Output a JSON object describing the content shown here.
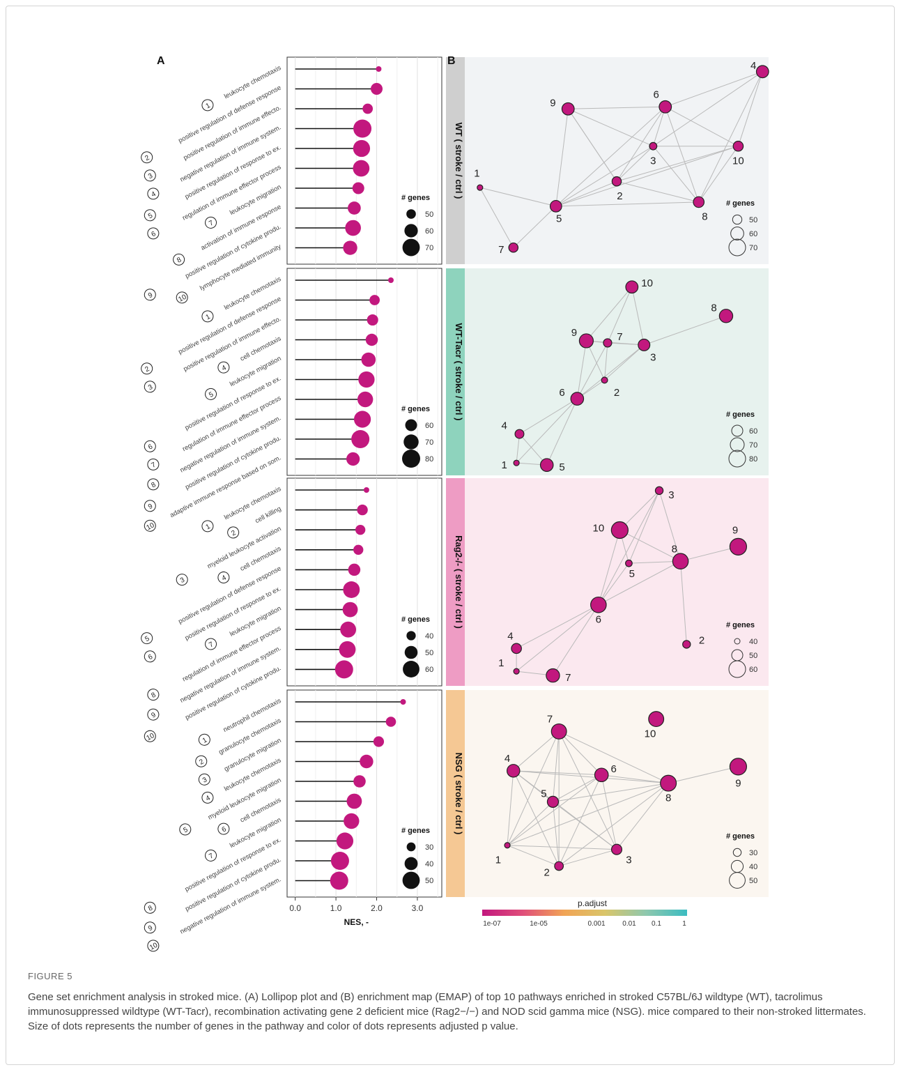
{
  "panel_labels": {
    "a": "A",
    "b": "B"
  },
  "nes_axis": {
    "label": "NES, -",
    "ticks": [
      "0.0",
      "1.0",
      "2.0",
      "3.0"
    ],
    "range": [
      -0.2,
      3.6
    ]
  },
  "legend_title": "# genes",
  "colorbar": {
    "title": "p.adjust",
    "ticks": [
      "1e-07",
      "1e-05",
      "0.001",
      "0.01",
      "0.1",
      "1"
    ],
    "colors": [
      "#c2187e",
      "#e04f7a",
      "#f1a455",
      "#d9c56a",
      "#8ec8ae",
      "#3bbcc1"
    ]
  },
  "node_color": "#c2187e",
  "chart_data": [
    {
      "type": "scatter",
      "group": "WT ( stroke / ctrl )",
      "strip_color": "#cfcfcf",
      "bg_color": "#f1f3f5",
      "pathways": [
        "leukocyte chemotaxis",
        "positive regulation of defense response",
        "positive regulation of immune effecto.",
        "negative regulation of immune system.",
        "positive regulation of response to ex.",
        "regulation of immune effector process",
        "leukocyte migration",
        "activation of immune response",
        "positive regulation of cytokine produ.",
        "lymphocyte mediated immunity"
      ],
      "nes": [
        2.05,
        2.0,
        1.78,
        1.65,
        1.63,
        1.62,
        1.55,
        1.45,
        1.42,
        1.35
      ],
      "genes": [
        40,
        56,
        52,
        72,
        69,
        68,
        56,
        59,
        66,
        62
      ],
      "legend": [
        50,
        60,
        70
      ]
    },
    {
      "type": "scatter",
      "group": "WT-Tacr ( stroke / ctrl )",
      "strip_color": "#8ed3bd",
      "bg_color": "#e7f2ee",
      "pathways": [
        "leukocyte chemotaxis",
        "positive regulation of defense response",
        "positive regulation of immune effecto.",
        "cell chemotaxis",
        "leukocyte migration",
        "positive regulation of response to ex.",
        "regulation of immune effector process",
        "negative regulation of immune system.",
        "positive regulation of cytokine produ.",
        "adaptive immune response based on som."
      ],
      "nes": [
        2.35,
        1.95,
        1.9,
        1.88,
        1.8,
        1.75,
        1.72,
        1.65,
        1.6,
        1.42
      ],
      "genes": [
        40,
        55,
        58,
        61,
        68,
        74,
        72,
        76,
        80,
        65
      ],
      "legend": [
        60,
        70,
        80
      ]
    },
    {
      "type": "scatter",
      "group": "Rag2-/- ( stroke / ctrl )",
      "strip_color": "#ee9cc4",
      "bg_color": "#fbe8ef",
      "pathways": [
        "leukocyte chemotaxis",
        "cell killing",
        "myeloid leukocyte activation",
        "cell chemotaxis",
        "positive regulation of defense response",
        "positive regulation of response to ex.",
        "leukocyte migration",
        "regulation of immune effector process",
        "negative regulation of immune system.",
        "positive regulation of cytokine produ."
      ],
      "nes": [
        1.75,
        1.65,
        1.6,
        1.55,
        1.45,
        1.38,
        1.35,
        1.3,
        1.28,
        1.2
      ],
      "genes": [
        30,
        44,
        42,
        42,
        48,
        60,
        56,
        58,
        60,
        64
      ],
      "legend": [
        40,
        50,
        60
      ]
    },
    {
      "type": "scatter",
      "group": "NSG ( stroke / ctrl )",
      "strip_color": "#f5c894",
      "bg_color": "#fbf6f0",
      "pathways": [
        "neutrophil chemotaxis",
        "granulocyte chemotaxis",
        "granulocyte migration",
        "leukocyte chemotaxis",
        "myeloid leukocyte migration",
        "cell chemotaxis",
        "leukocyte migration",
        "positive regulation of response to ex.",
        "positive regulation of cytokine produ.",
        "negative regulation of immune system."
      ],
      "nes": [
        2.65,
        2.35,
        2.05,
        1.75,
        1.58,
        1.45,
        1.38,
        1.22,
        1.1,
        1.08
      ],
      "genes": [
        22,
        33,
        34,
        41,
        38,
        45,
        46,
        49,
        52,
        52
      ],
      "legend": [
        30,
        40,
        50
      ]
    }
  ],
  "emap": [
    {
      "nodes": [
        [
          1,
          0.05,
          0.63,
          40
        ],
        [
          2,
          0.5,
          0.6,
          50
        ],
        [
          3,
          0.62,
          0.43,
          45
        ],
        [
          4,
          0.98,
          0.07,
          58
        ],
        [
          5,
          0.3,
          0.72,
          56
        ],
        [
          6,
          0.66,
          0.24,
          58
        ],
        [
          7,
          0.16,
          0.92,
          50
        ],
        [
          8,
          0.77,
          0.7,
          54
        ],
        [
          9,
          0.34,
          0.25,
          58
        ],
        [
          10,
          0.9,
          0.43,
          52
        ]
      ],
      "edges": [
        [
          1,
          5
        ],
        [
          1,
          7
        ],
        [
          5,
          7
        ],
        [
          5,
          2
        ],
        [
          5,
          3
        ],
        [
          5,
          6
        ],
        [
          5,
          9
        ],
        [
          5,
          8
        ],
        [
          5,
          10
        ],
        [
          2,
          3
        ],
        [
          2,
          6
        ],
        [
          2,
          9
        ],
        [
          2,
          8
        ],
        [
          2,
          10
        ],
        [
          3,
          6
        ],
        [
          3,
          10
        ],
        [
          3,
          8
        ],
        [
          3,
          4
        ],
        [
          6,
          9
        ],
        [
          6,
          4
        ],
        [
          6,
          10
        ],
        [
          6,
          8
        ],
        [
          4,
          10
        ],
        [
          4,
          8
        ],
        [
          9,
          2
        ],
        [
          10,
          8
        ],
        [
          9,
          3
        ]
      ],
      "label_pos": [
        [
          1,
          0.04,
          0.56
        ],
        [
          2,
          0.51,
          0.67
        ],
        [
          3,
          0.62,
          0.5
        ],
        [
          4,
          0.95,
          0.04
        ],
        [
          5,
          0.31,
          0.78
        ],
        [
          6,
          0.63,
          0.18
        ],
        [
          7,
          0.12,
          0.93
        ],
        [
          8,
          0.79,
          0.77
        ],
        [
          9,
          0.29,
          0.22
        ],
        [
          10,
          0.9,
          0.5
        ]
      ]
    },
    {
      "nodes": [
        [
          1,
          0.17,
          0.94,
          40
        ],
        [
          2,
          0.46,
          0.54,
          42
        ],
        [
          3,
          0.59,
          0.37,
          62
        ],
        [
          4,
          0.18,
          0.8,
          52
        ],
        [
          5,
          0.27,
          0.95,
          66
        ],
        [
          6,
          0.37,
          0.63,
          66
        ],
        [
          7,
          0.47,
          0.36,
          50
        ],
        [
          8,
          0.86,
          0.23,
          68
        ],
        [
          9,
          0.4,
          0.35,
          70
        ],
        [
          10,
          0.55,
          0.09,
          64
        ]
      ],
      "edges": [
        [
          1,
          4
        ],
        [
          1,
          5
        ],
        [
          4,
          5
        ],
        [
          4,
          6
        ],
        [
          5,
          6
        ],
        [
          1,
          6
        ],
        [
          6,
          9
        ],
        [
          6,
          7
        ],
        [
          6,
          3
        ],
        [
          6,
          2
        ],
        [
          2,
          9
        ],
        [
          2,
          3
        ],
        [
          9,
          7
        ],
        [
          7,
          3
        ],
        [
          9,
          3
        ],
        [
          9,
          10
        ],
        [
          10,
          3
        ],
        [
          10,
          7
        ],
        [
          3,
          8
        ],
        [
          2,
          7
        ]
      ],
      "label_pos": [
        [
          1,
          0.13,
          0.95
        ],
        [
          2,
          0.5,
          0.6
        ],
        [
          3,
          0.62,
          0.43
        ],
        [
          4,
          0.13,
          0.76
        ],
        [
          5,
          0.32,
          0.96
        ],
        [
          6,
          0.32,
          0.6
        ],
        [
          7,
          0.51,
          0.33
        ],
        [
          8,
          0.82,
          0.19
        ],
        [
          9,
          0.36,
          0.31
        ],
        [
          10,
          0.6,
          0.07
        ]
      ]
    },
    {
      "nodes": [
        [
          1,
          0.17,
          0.93,
          40
        ],
        [
          2,
          0.73,
          0.8,
          44
        ],
        [
          3,
          0.64,
          0.06,
          44
        ],
        [
          4,
          0.17,
          0.82,
          48
        ],
        [
          5,
          0.54,
          0.41,
          42
        ],
        [
          6,
          0.44,
          0.61,
          58
        ],
        [
          7,
          0.29,
          0.95,
          54
        ],
        [
          8,
          0.71,
          0.4,
          58
        ],
        [
          9,
          0.9,
          0.33,
          60
        ],
        [
          10,
          0.51,
          0.25,
          60
        ]
      ],
      "edges": [
        [
          1,
          4
        ],
        [
          1,
          7
        ],
        [
          4,
          6
        ],
        [
          7,
          6
        ],
        [
          1,
          6
        ],
        [
          6,
          5
        ],
        [
          6,
          10
        ],
        [
          6,
          8
        ],
        [
          5,
          10
        ],
        [
          5,
          8
        ],
        [
          5,
          3
        ],
        [
          10,
          3
        ],
        [
          10,
          8
        ],
        [
          8,
          3
        ],
        [
          8,
          9
        ],
        [
          8,
          2
        ],
        [
          6,
          3
        ]
      ],
      "label_pos": [
        [
          1,
          0.12,
          0.89
        ],
        [
          2,
          0.78,
          0.78
        ],
        [
          3,
          0.68,
          0.08
        ],
        [
          4,
          0.15,
          0.76
        ],
        [
          5,
          0.55,
          0.46
        ],
        [
          6,
          0.44,
          0.68
        ],
        [
          7,
          0.34,
          0.96
        ],
        [
          8,
          0.69,
          0.34
        ],
        [
          9,
          0.89,
          0.25
        ],
        [
          10,
          0.44,
          0.24
        ]
      ]
    },
    {
      "nodes": [
        [
          1,
          0.14,
          0.75,
          24
        ],
        [
          2,
          0.31,
          0.85,
          32
        ],
        [
          3,
          0.5,
          0.77,
          36
        ],
        [
          4,
          0.16,
          0.39,
          42
        ],
        [
          5,
          0.29,
          0.54,
          38
        ],
        [
          6,
          0.45,
          0.41,
          44
        ],
        [
          7,
          0.31,
          0.2,
          48
        ],
        [
          8,
          0.67,
          0.45,
          50
        ],
        [
          9,
          0.9,
          0.37,
          52
        ],
        [
          10,
          0.63,
          0.14,
          48
        ]
      ],
      "edges": [
        [
          1,
          4
        ],
        [
          1,
          7
        ],
        [
          1,
          5
        ],
        [
          1,
          6
        ],
        [
          1,
          2
        ],
        [
          1,
          3
        ],
        [
          1,
          8
        ],
        [
          4,
          7
        ],
        [
          4,
          6
        ],
        [
          4,
          5
        ],
        [
          4,
          2
        ],
        [
          4,
          3
        ],
        [
          4,
          8
        ],
        [
          7,
          5
        ],
        [
          7,
          6
        ],
        [
          7,
          2
        ],
        [
          7,
          3
        ],
        [
          7,
          8
        ],
        [
          5,
          6
        ],
        [
          5,
          2
        ],
        [
          5,
          3
        ],
        [
          5,
          8
        ],
        [
          6,
          2
        ],
        [
          6,
          3
        ],
        [
          6,
          8
        ],
        [
          2,
          3
        ],
        [
          2,
          8
        ],
        [
          3,
          8
        ],
        [
          8,
          9
        ]
      ],
      "label_pos": [
        [
          1,
          0.11,
          0.82
        ],
        [
          2,
          0.27,
          0.88
        ],
        [
          3,
          0.54,
          0.82
        ],
        [
          4,
          0.14,
          0.33
        ],
        [
          5,
          0.26,
          0.5
        ],
        [
          6,
          0.49,
          0.38
        ],
        [
          7,
          0.28,
          0.14
        ],
        [
          8,
          0.67,
          0.52
        ],
        [
          9,
          0.9,
          0.45
        ],
        [
          10,
          0.61,
          0.21
        ]
      ]
    }
  ],
  "caption": {
    "label": "FIGURE 5",
    "text": "Gene set enrichment analysis in stroked mice. (A) Lollipop plot and (B) enrichment map (EMAP) of top 10 pathways enriched in stroked C57BL/6J wildtype (WT), tacrolimus immunosuppressed wildtype (WT-Tacr), recombination activating gene 2 deficient mice (Rag2−/−) and NOD scid gamma mice (NSG). mice compared to their non-stroked littermates. Size of dots represents the number of genes in the pathway and color of dots represents adjusted p value."
  }
}
